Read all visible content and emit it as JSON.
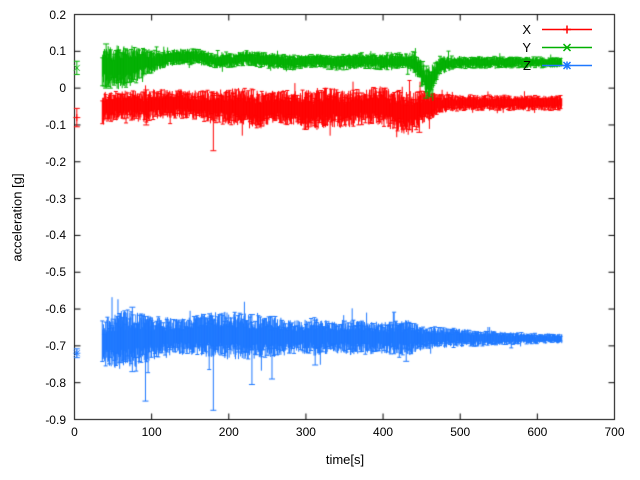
{
  "chart_data": {
    "type": "line",
    "title": "",
    "xlabel": "time[s]",
    "ylabel": "acceleration [g]",
    "xlim": [
      0,
      700
    ],
    "ylim": [
      -0.9,
      0.2
    ],
    "grid": false,
    "legend_position": "top-right",
    "background": "#ffffff",
    "axis_color": "#000000",
    "xticks": [
      0,
      100,
      200,
      300,
      400,
      500,
      600,
      700
    ],
    "yticks": [
      {
        "label": "0.2",
        "value": 0.2
      },
      {
        "label": "0.1",
        "value": 0.1
      },
      {
        "label": "0",
        "value": 0
      },
      {
        "label": "-0.1",
        "value": -0.1
      },
      {
        "label": "-0.2",
        "value": -0.2
      },
      {
        "label": "-0.3",
        "value": -0.3
      },
      {
        "label": "-0.4",
        "value": -0.4
      },
      {
        "label": "-0.5",
        "value": -0.5
      },
      {
        "label": "-0.6",
        "value": -0.6
      },
      {
        "label": "-0.7",
        "value": -0.7
      },
      {
        "label": "-0.8",
        "value": -0.8
      },
      {
        "label": "-0.9",
        "value": -0.9
      }
    ],
    "series": [
      {
        "name": "X",
        "color": "#ff0000",
        "marker": "plus",
        "mean": -0.05,
        "t_range": [
          36,
          632
        ],
        "start_point": {
          "t": 3,
          "y": -0.08,
          "err": 0.025
        },
        "baseline": [
          [
            36,
            -0.055
          ],
          [
            60,
            -0.045
          ],
          [
            90,
            -0.05
          ],
          [
            120,
            -0.04
          ],
          [
            150,
            -0.045
          ],
          [
            180,
            -0.05
          ],
          [
            210,
            -0.05
          ],
          [
            240,
            -0.06
          ],
          [
            262,
            -0.05
          ],
          [
            290,
            -0.055
          ],
          [
            310,
            -0.062
          ],
          [
            330,
            -0.05
          ],
          [
            350,
            -0.06
          ],
          [
            372,
            -0.05
          ],
          [
            392,
            -0.045
          ],
          [
            412,
            -0.06
          ],
          [
            432,
            -0.068
          ],
          [
            447,
            -0.058
          ],
          [
            462,
            -0.048
          ],
          [
            480,
            -0.04
          ],
          [
            632,
            -0.04
          ]
        ],
        "spread": [
          [
            36,
            0.045
          ],
          [
            60,
            0.035
          ],
          [
            90,
            0.04
          ],
          [
            150,
            0.035
          ],
          [
            200,
            0.045
          ],
          [
            232,
            0.05
          ],
          [
            262,
            0.04
          ],
          [
            300,
            0.05
          ],
          [
            332,
            0.05
          ],
          [
            362,
            0.045
          ],
          [
            402,
            0.05
          ],
          [
            432,
            0.055
          ],
          [
            457,
            0.04
          ],
          [
            472,
            0.025
          ],
          [
            500,
            0.02
          ],
          [
            632,
            0.019
          ]
        ],
        "outliers": [
          [
            93,
            -0.1,
            -0.005
          ],
          [
            180,
            -0.17,
            -0.02
          ],
          [
            447,
            -0.12,
            -0.01
          ]
        ]
      },
      {
        "name": "Y",
        "color": "#00b000",
        "marker": "cross",
        "mean": 0.07,
        "t_range": [
          36,
          632
        ],
        "start_point": {
          "t": 3,
          "y": 0.055,
          "err": 0.018
        },
        "baseline": [
          [
            36,
            0.06
          ],
          [
            52,
            0.055
          ],
          [
            70,
            0.06
          ],
          [
            90,
            0.07
          ],
          [
            110,
            0.075
          ],
          [
            132,
            0.085
          ],
          [
            160,
            0.085
          ],
          [
            182,
            0.075
          ],
          [
            205,
            0.075
          ],
          [
            222,
            0.082
          ],
          [
            252,
            0.075
          ],
          [
            282,
            0.07
          ],
          [
            312,
            0.075
          ],
          [
            342,
            0.07
          ],
          [
            372,
            0.075
          ],
          [
            402,
            0.07
          ],
          [
            422,
            0.075
          ],
          [
            440,
            0.07
          ],
          [
            450,
            0.04
          ],
          [
            458,
            0.012
          ],
          [
            466,
            0.032
          ],
          [
            474,
            0.062
          ],
          [
            492,
            0.07
          ],
          [
            632,
            0.07
          ]
        ],
        "spread": [
          [
            36,
            0.05
          ],
          [
            56,
            0.055
          ],
          [
            76,
            0.05
          ],
          [
            92,
            0.035
          ],
          [
            112,
            0.022
          ],
          [
            142,
            0.02
          ],
          [
            202,
            0.018
          ],
          [
            252,
            0.02
          ],
          [
            302,
            0.018
          ],
          [
            352,
            0.02
          ],
          [
            402,
            0.02
          ],
          [
            432,
            0.02
          ],
          [
            450,
            0.035
          ],
          [
            462,
            0.04
          ],
          [
            472,
            0.025
          ],
          [
            492,
            0.016
          ],
          [
            632,
            0.013
          ]
        ],
        "outliers": [
          [
            41,
            0.0,
            0.12
          ],
          [
            456,
            -0.027,
            0.06
          ]
        ]
      },
      {
        "name": "Z",
        "color": "#1e78ff",
        "marker": "asterisk",
        "mean": -0.675,
        "t_range": [
          36,
          632
        ],
        "start_point": {
          "t": 3,
          "y": -0.72,
          "err": 0.012
        },
        "baseline": [
          [
            36,
            -0.69
          ],
          [
            60,
            -0.685
          ],
          [
            90,
            -0.68
          ],
          [
            120,
            -0.675
          ],
          [
            160,
            -0.67
          ],
          [
            200,
            -0.672
          ],
          [
            240,
            -0.675
          ],
          [
            320,
            -0.675
          ],
          [
            400,
            -0.678
          ],
          [
            480,
            -0.678
          ],
          [
            560,
            -0.68
          ],
          [
            632,
            -0.68
          ]
        ],
        "spread": [
          [
            36,
            0.055
          ],
          [
            50,
            0.07
          ],
          [
            72,
            0.075
          ],
          [
            92,
            0.06
          ],
          [
            112,
            0.05
          ],
          [
            142,
            0.045
          ],
          [
            172,
            0.055
          ],
          [
            202,
            0.06
          ],
          [
            232,
            0.055
          ],
          [
            262,
            0.05
          ],
          [
            292,
            0.04
          ],
          [
            312,
            0.05
          ],
          [
            332,
            0.04
          ],
          [
            362,
            0.045
          ],
          [
            392,
            0.04
          ],
          [
            412,
            0.04
          ],
          [
            432,
            0.045
          ],
          [
            452,
            0.03
          ],
          [
            482,
            0.025
          ],
          [
            522,
            0.02
          ],
          [
            562,
            0.016
          ],
          [
            602,
            0.013
          ],
          [
            632,
            0.012
          ]
        ],
        "outliers": [
          [
            75,
            -0.77,
            -0.595
          ],
          [
            92,
            -0.85,
            -0.62
          ],
          [
            180,
            -0.875,
            -0.63
          ],
          [
            230,
            -0.805,
            -0.615
          ],
          [
            256,
            -0.79,
            -0.62
          ],
          [
            312,
            -0.752,
            -0.63
          ],
          [
            430,
            -0.742,
            -0.638
          ]
        ]
      }
    ]
  }
}
